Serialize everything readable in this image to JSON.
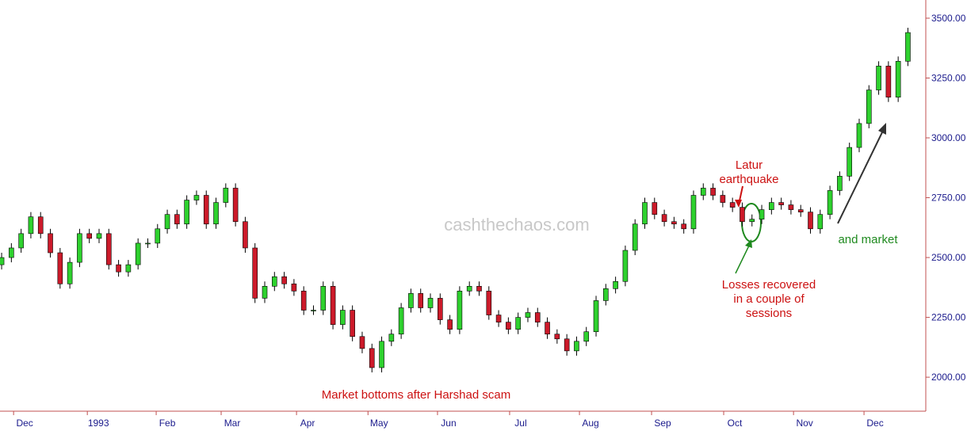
{
  "chart_data": {
    "type": "candlestick",
    "watermark": "cashthechaos.com",
    "up_color": "#2ed12e",
    "down_color": "#cc1a2a",
    "x": [
      0,
      3,
      6,
      9,
      12,
      15,
      18,
      21,
      24,
      27,
      30,
      33,
      36,
      39,
      42,
      45,
      48,
      51,
      54,
      57,
      60,
      63,
      66,
      69,
      72,
      75,
      78,
      81,
      84,
      87,
      90,
      93,
      96,
      99,
      102,
      105,
      108,
      111,
      114,
      117,
      120,
      123,
      126,
      129,
      132,
      135,
      138,
      141,
      144,
      147,
      150,
      153,
      156,
      159,
      162,
      165,
      168,
      171,
      174,
      177,
      180,
      183,
      186,
      189,
      192,
      195,
      198,
      201,
      204,
      207,
      210,
      213,
      216,
      219,
      222,
      225,
      228,
      231,
      234,
      237,
      240,
      243,
      246,
      249,
      252,
      255,
      258,
      261,
      264,
      267,
      270,
      273,
      276,
      279
    ],
    "open": [
      2470,
      2500,
      2540,
      2600,
      2670,
      2600,
      2520,
      2390,
      2480,
      2600,
      2580,
      2600,
      2470,
      2440,
      2470,
      2560,
      2560,
      2620,
      2680,
      2640,
      2740,
      2760,
      2640,
      2730,
      2790,
      2650,
      2540,
      2330,
      2380,
      2420,
      2390,
      2360,
      2280,
      2280,
      2380,
      2220,
      2280,
      2170,
      2120,
      2040,
      2150,
      2180,
      2290,
      2350,
      2290,
      2330,
      2240,
      2200,
      2360,
      2380,
      2360,
      2260,
      2230,
      2200,
      2250,
      2270,
      2230,
      2180,
      2160,
      2110,
      2150,
      2190,
      2320,
      2370,
      2400,
      2530,
      2640,
      2730,
      2680,
      2650,
      2640,
      2620,
      2760,
      2790,
      2760,
      2730,
      2710,
      2650,
      2660,
      2700,
      2730,
      2720,
      2700,
      2690,
      2620,
      2680,
      2780,
      2840,
      2960,
      3060,
      3200,
      3300,
      3170,
      3320
    ],
    "high": [
      2520,
      2560,
      2620,
      2690,
      2690,
      2620,
      2540,
      2500,
      2620,
      2620,
      2620,
      2620,
      2490,
      2490,
      2580,
      2580,
      2640,
      2700,
      2700,
      2760,
      2780,
      2780,
      2750,
      2810,
      2810,
      2670,
      2560,
      2400,
      2440,
      2440,
      2410,
      2380,
      2300,
      2400,
      2400,
      2300,
      2300,
      2190,
      2140,
      2170,
      2200,
      2310,
      2370,
      2370,
      2350,
      2350,
      2260,
      2380,
      2400,
      2400,
      2380,
      2280,
      2250,
      2270,
      2290,
      2290,
      2250,
      2200,
      2180,
      2170,
      2210,
      2340,
      2390,
      2420,
      2550,
      2660,
      2750,
      2750,
      2700,
      2670,
      2660,
      2780,
      2810,
      2810,
      2780,
      2750,
      2730,
      2680,
      2720,
      2750,
      2750,
      2740,
      2720,
      2710,
      2700,
      2800,
      2860,
      2980,
      3080,
      3220,
      3320,
      3320,
      3340,
      3460
    ],
    "low": [
      2450,
      2480,
      2520,
      2580,
      2580,
      2500,
      2370,
      2370,
      2460,
      2560,
      2560,
      2450,
      2420,
      2420,
      2450,
      2540,
      2540,
      2600,
      2620,
      2620,
      2720,
      2620,
      2620,
      2710,
      2630,
      2520,
      2310,
      2310,
      2360,
      2370,
      2340,
      2260,
      2260,
      2260,
      2200,
      2200,
      2150,
      2100,
      2020,
      2020,
      2130,
      2160,
      2270,
      2270,
      2270,
      2220,
      2180,
      2180,
      2340,
      2340,
      2240,
      2210,
      2180,
      2180,
      2230,
      2210,
      2160,
      2140,
      2090,
      2090,
      2130,
      2170,
      2300,
      2350,
      2380,
      2510,
      2620,
      2660,
      2630,
      2620,
      2600,
      2600,
      2740,
      2740,
      2710,
      2690,
      2630,
      2630,
      2640,
      2680,
      2700,
      2680,
      2670,
      2600,
      2600,
      2660,
      2760,
      2820,
      2940,
      3040,
      3180,
      3150,
      3150,
      3300
    ],
    "close": [
      2500,
      2540,
      2600,
      2670,
      2600,
      2520,
      2390,
      2480,
      2600,
      2580,
      2600,
      2470,
      2440,
      2470,
      2560,
      2560,
      2620,
      2680,
      2640,
      2740,
      2760,
      2640,
      2730,
      2790,
      2650,
      2540,
      2330,
      2380,
      2420,
      2390,
      2360,
      2280,
      2280,
      2380,
      2220,
      2280,
      2170,
      2120,
      2040,
      2150,
      2180,
      2290,
      2350,
      2290,
      2330,
      2240,
      2200,
      2360,
      2380,
      2360,
      2260,
      2230,
      2200,
      2250,
      2270,
      2230,
      2180,
      2160,
      2110,
      2150,
      2190,
      2320,
      2370,
      2400,
      2530,
      2640,
      2730,
      2680,
      2650,
      2640,
      2620,
      2760,
      2790,
      2760,
      2730,
      2710,
      2650,
      2660,
      2700,
      2730,
      2720,
      2700,
      2690,
      2620,
      2680,
      2780,
      2840,
      2960,
      3060,
      3200,
      3300,
      3170,
      3320,
      3440
    ],
    "xlim": [
      -0.5,
      284.5
    ],
    "xticks": [
      {
        "value": 7.1,
        "label": "Dec"
      },
      {
        "value": 29.8,
        "label": "1993"
      },
      {
        "value": 51,
        "label": "Feb"
      },
      {
        "value": 71,
        "label": "Mar"
      },
      {
        "value": 94.2,
        "label": "Apr"
      },
      {
        "value": 116.2,
        "label": "May"
      },
      {
        "value": 137.6,
        "label": "Jun"
      },
      {
        "value": 159.8,
        "label": "Jul"
      },
      {
        "value": 181.3,
        "label": "Aug"
      },
      {
        "value": 203.5,
        "label": "Sep"
      },
      {
        "value": 225.7,
        "label": "Oct"
      },
      {
        "value": 247.2,
        "label": "Nov"
      },
      {
        "value": 268.9,
        "label": "Dec"
      }
    ],
    "ylim": [
      1858,
      3576
    ],
    "yticks": [
      {
        "value": 2000,
        "label": "2000.00"
      },
      {
        "value": 2250,
        "label": "2250.00"
      },
      {
        "value": 2500,
        "label": "2500.00"
      },
      {
        "value": 2750,
        "label": "2750.00"
      },
      {
        "value": 3000,
        "label": "3000.00"
      },
      {
        "value": 3250,
        "label": "3250.00"
      },
      {
        "value": 3500,
        "label": "3500.00"
      }
    ],
    "annotations": [
      {
        "lines": [
          "Latur",
          "earthquake"
        ],
        "color": "#cc1111"
      },
      {
        "lines": [
          "Losses recovered",
          "in a couple of",
          "sessions"
        ],
        "color": "#cc1111"
      },
      {
        "lines": [
          "Market bottoms after Harshad scam"
        ],
        "color": "#cc1111"
      },
      {
        "lines": [
          "and market"
        ],
        "color": "#1f8a1f"
      }
    ]
  }
}
